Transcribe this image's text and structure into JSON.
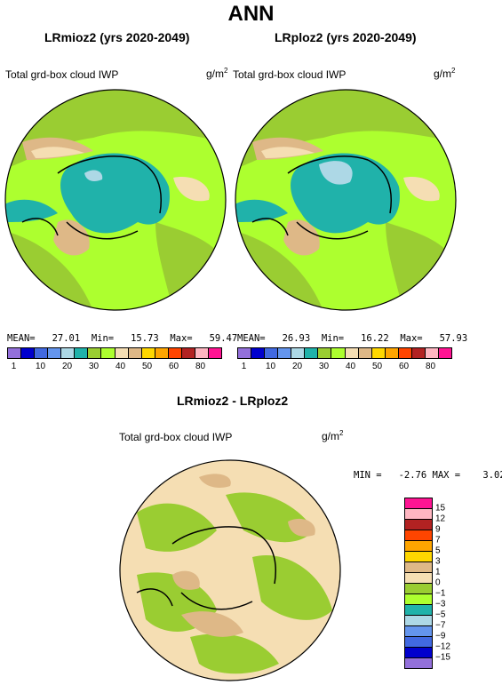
{
  "page_title": "ANN",
  "panels": [
    {
      "title": "LRmioz2 (yrs 2020-2049)",
      "variable": "Total grd-box cloud IWP",
      "units": "g/m",
      "units_exp": "2",
      "stats": "MEAN=   27.01  Min=   15.73  Max=   59.47"
    },
    {
      "title": "LRploz2 (yrs 2020-2049)",
      "variable": "Total grd-box cloud IWP",
      "units": "g/m",
      "units_exp": "2",
      "stats": "MEAN=   26.93  Min=   16.22  Max=   57.93"
    }
  ],
  "colorbar_top": {
    "colors": [
      "#9370db",
      "#0000cd",
      "#4169e1",
      "#6495ed",
      "#add8e6",
      "#20b2aa",
      "#9acd32",
      "#adff2f",
      "#f5deb3",
      "#deb887",
      "#ffd700",
      "#ffa500",
      "#ff4500",
      "#b22222",
      "#ffb6c1",
      "#ff1493"
    ],
    "labels": [
      "1",
      "10",
      "20",
      "30",
      "40",
      "50",
      "60",
      "80"
    ]
  },
  "diff_panel": {
    "title": "LRmioz2 - LRploz2",
    "variable": "Total grd-box cloud IWP",
    "units": "g/m",
    "units_exp": "2",
    "stats": "MIN =   -2.76 MAX =    3.02"
  },
  "colorbar_diff": {
    "colors": [
      "#ff1493",
      "#ffb6c1",
      "#b22222",
      "#ff4500",
      "#ffa500",
      "#ffd700",
      "#deb887",
      "#f5deb3",
      "#9acd32",
      "#adff2f",
      "#20b2aa",
      "#add8e6",
      "#6495ed",
      "#4169e1",
      "#0000cd",
      "#9370db"
    ],
    "labels": [
      "15",
      "12",
      "9",
      "7",
      "5",
      "3",
      "1",
      "0",
      "−1",
      "−3",
      "−5",
      "−7",
      "−9",
      "−12",
      "−15"
    ]
  },
  "map_colors": {
    "ocean_main": "#adff2f",
    "land_green": "#9acd32",
    "arctic": "#20b2aa",
    "tan": "#deb887",
    "wheat": "#f5deb3",
    "pale": "#add8e6"
  }
}
